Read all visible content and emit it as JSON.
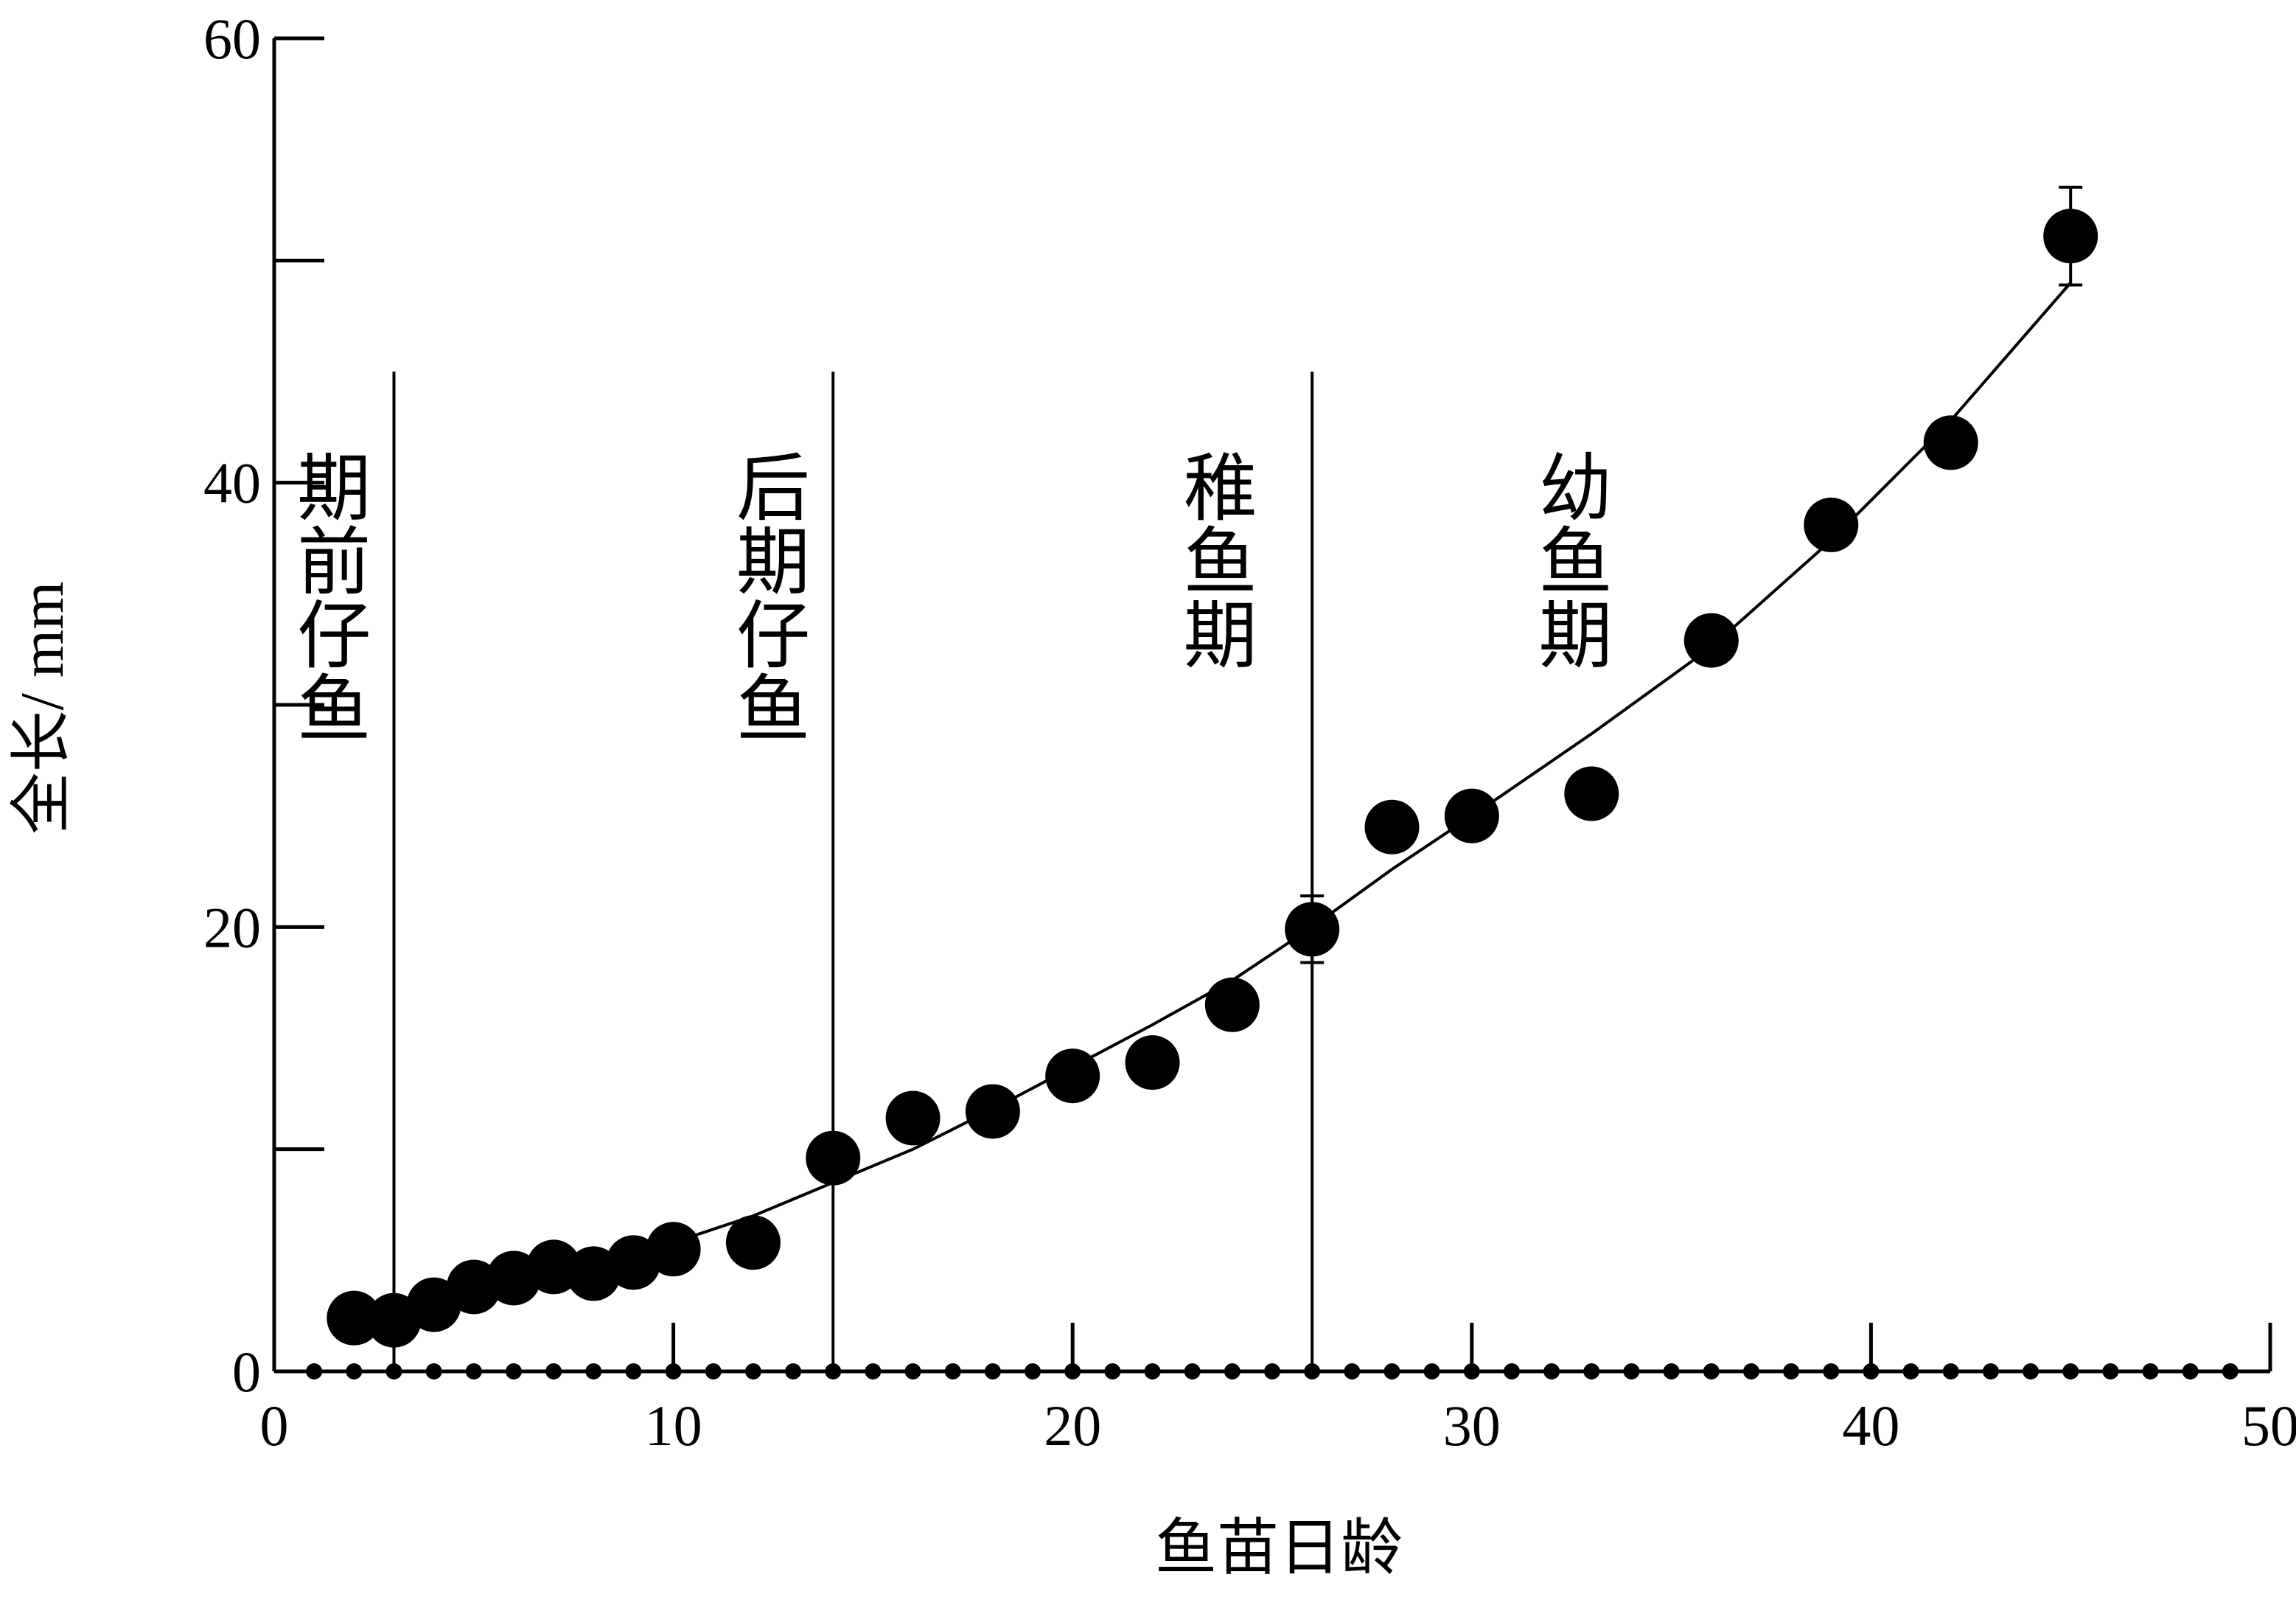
{
  "chart_data": {
    "type": "scatter",
    "xlabel": "鱼苗日龄",
    "ylabel": "全长/ mm",
    "xlim": [
      0,
      50
    ],
    "ylim": [
      0,
      60
    ],
    "x_major_ticks": [
      0,
      10,
      20,
      30,
      40,
      50
    ],
    "y_major_ticks": [
      0,
      20,
      40,
      60
    ],
    "y_minor_ticks": [
      10,
      30,
      50
    ],
    "x_ticks_all": [
      0,
      10,
      20,
      30,
      40,
      50
    ],
    "y_ticks_all": [
      0,
      10,
      20,
      30,
      40,
      50,
      60
    ],
    "x_tick_labels": [
      "0",
      "10",
      "20",
      "30",
      "40",
      "50"
    ],
    "y_tick_labels": [
      "0",
      "20",
      "40",
      "60"
    ],
    "grid": false,
    "series": [
      {
        "x": [
          2,
          3,
          4,
          5,
          6,
          7,
          8,
          9,
          10,
          12,
          14,
          16,
          18,
          20,
          22,
          24,
          26,
          28,
          30,
          33,
          36,
          39,
          42,
          45
        ],
        "y": [
          2.4,
          2.3,
          3.0,
          3.8,
          4.2,
          4.7,
          4.4,
          4.9,
          5.5,
          5.8,
          9.6,
          11.4,
          11.7,
          13.3,
          13.9,
          16.5,
          19.9,
          24.5,
          25.0,
          26.0,
          32.9,
          38.1,
          41.8,
          51.1
        ],
        "error_bars": [
          {
            "x": 26,
            "y": 19.9,
            "err": 1.5
          },
          {
            "x": 45,
            "y": 51.1,
            "err": 2.2
          }
        ]
      }
    ],
    "fit_curve": {
      "x": [
        3,
        5,
        8,
        10,
        12,
        14,
        16,
        18,
        20,
        22,
        24,
        26,
        28,
        30,
        33,
        36,
        39,
        42,
        45
      ],
      "y": [
        2.6,
        3.5,
        4.8,
        5.8,
        7.0,
        8.5,
        10.0,
        11.8,
        13.7,
        15.6,
        17.6,
        20.0,
        22.6,
        25.0,
        28.7,
        32.6,
        37.4,
        42.8,
        49.0
      ]
    },
    "x_axis_markers": [
      1,
      2,
      3,
      4,
      5,
      6,
      7,
      8,
      9,
      10,
      11,
      12,
      13,
      14,
      15,
      16,
      17,
      18,
      19,
      20,
      21,
      22,
      23,
      24,
      25,
      26,
      27,
      28,
      29,
      30,
      31,
      32,
      33,
      34,
      35,
      36,
      37,
      38,
      39,
      40,
      41,
      42,
      43,
      44,
      45,
      46,
      47,
      48,
      49
    ],
    "stage_boundaries": [
      3,
      14,
      26
    ],
    "stage_line_top": 45,
    "stages": [
      {
        "label": [
          "期",
          "前",
          "仔",
          "鱼"
        ],
        "x": 1.5
      },
      {
        "label": [
          "后",
          "期",
          "仔",
          "鱼"
        ],
        "x": 12.5
      },
      {
        "label": [
          "稚",
          "鱼",
          "期"
        ],
        "x": 23.7
      },
      {
        "label": [
          "幼",
          "鱼",
          "期"
        ],
        "x": 32.6
      }
    ]
  }
}
